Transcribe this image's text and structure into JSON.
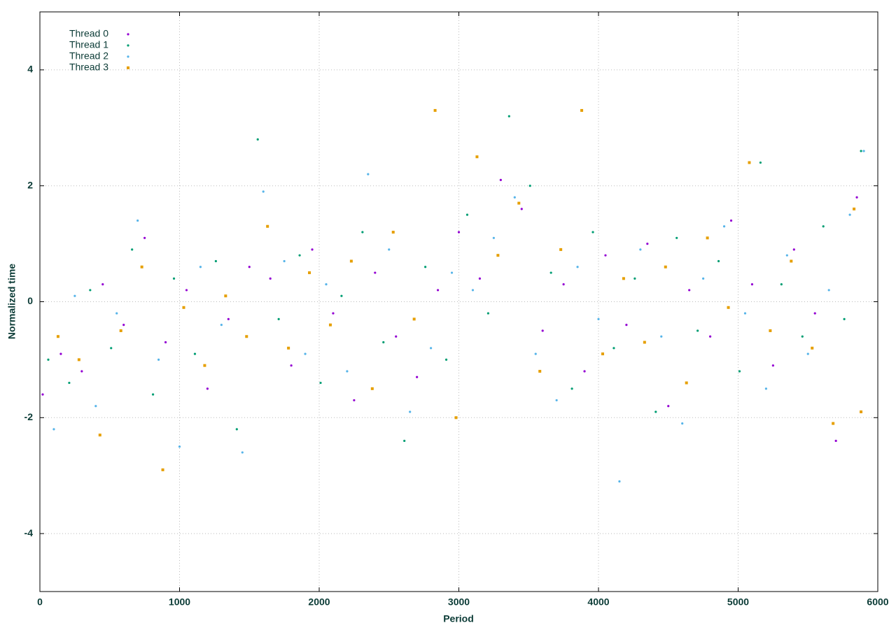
{
  "chart_data": {
    "type": "scatter",
    "xlabel": "Period",
    "ylabel": "Normalized time",
    "xlim": [
      0,
      6000
    ],
    "ylim": [
      -5,
      5
    ],
    "xticks": [
      0,
      1000,
      2000,
      3000,
      4000,
      5000,
      6000
    ],
    "yticks": [
      -4,
      -2,
      0,
      2,
      4
    ],
    "grid": true,
    "legend": "upper-left",
    "series": [
      {
        "name": "Thread 0",
        "color": "#9400d3",
        "x": [
          20,
          150,
          300,
          450,
          600,
          750,
          900,
          1050,
          1200,
          1350,
          1500,
          1650,
          1800,
          1950,
          2100,
          2250,
          2400,
          2550,
          2700,
          2850,
          3000,
          3150,
          3300,
          3450,
          3600,
          3750,
          3900,
          4050,
          4200,
          4350,
          4500,
          4650,
          4800,
          4950,
          5100,
          5250,
          5400,
          5550,
          5700,
          5850
        ],
        "values": [
          -1.6,
          -0.9,
          -1.2,
          0.3,
          -0.4,
          1.1,
          -0.7,
          0.2,
          -1.5,
          -0.3,
          0.6,
          0.4,
          -1.1,
          0.9,
          -0.2,
          -1.7,
          0.5,
          -0.6,
          -1.3,
          0.2,
          1.2,
          0.4,
          2.1,
          1.6,
          -0.5,
          0.3,
          -1.2,
          0.8,
          -0.4,
          1.0,
          -1.8,
          0.2,
          -0.6,
          1.4,
          0.3,
          -1.1,
          0.9,
          -0.2,
          -2.4,
          1.8
        ]
      },
      {
        "name": "Thread 1",
        "color": "#009e73",
        "x": [
          60,
          210,
          360,
          510,
          660,
          810,
          960,
          1110,
          1260,
          1410,
          1560,
          1710,
          1860,
          2010,
          2160,
          2310,
          2460,
          2610,
          2760,
          2910,
          3060,
          3210,
          3360,
          3510,
          3660,
          3810,
          3960,
          4110,
          4260,
          4410,
          4560,
          4710,
          4860,
          5010,
          5160,
          5310,
          5460,
          5610,
          5760,
          5880
        ],
        "values": [
          -1.0,
          -1.4,
          0.2,
          -0.8,
          0.9,
          -1.6,
          0.4,
          -0.9,
          0.7,
          -2.2,
          2.8,
          -0.3,
          0.8,
          -1.4,
          0.1,
          1.2,
          -0.7,
          -2.4,
          0.6,
          -1.0,
          1.5,
          -0.2,
          3.2,
          2.0,
          0.5,
          -1.5,
          1.2,
          -0.8,
          0.4,
          -1.9,
          1.1,
          -0.5,
          0.7,
          -1.2,
          2.4,
          0.3,
          -0.6,
          1.3,
          -0.3,
          2.6
        ]
      },
      {
        "name": "Thread 2",
        "color": "#56b4e9",
        "x": [
          100,
          250,
          400,
          550,
          700,
          850,
          1000,
          1150,
          1300,
          1450,
          1600,
          1750,
          1900,
          2050,
          2200,
          2350,
          2500,
          2650,
          2800,
          2950,
          3100,
          3250,
          3400,
          3550,
          3700,
          3850,
          4000,
          4150,
          4300,
          4450,
          4600,
          4750,
          4900,
          5050,
          5200,
          5350,
          5500,
          5650,
          5800,
          5900
        ],
        "values": [
          -2.2,
          0.1,
          -1.8,
          -0.2,
          1.4,
          -1.0,
          -2.5,
          0.6,
          -0.4,
          -2.6,
          1.9,
          0.7,
          -0.9,
          0.3,
          -1.2,
          2.2,
          0.9,
          -1.9,
          -0.8,
          0.5,
          0.2,
          1.1,
          1.8,
          -0.9,
          -1.7,
          0.6,
          -0.3,
          -3.1,
          0.9,
          -0.6,
          -2.1,
          0.4,
          1.3,
          -0.2,
          -1.5,
          0.8,
          -0.9,
          0.2,
          1.5,
          2.6
        ]
      },
      {
        "name": "Thread 3",
        "color": "#e69f00",
        "x": [
          130,
          280,
          430,
          580,
          730,
          880,
          1030,
          1180,
          1330,
          1480,
          1630,
          1780,
          1930,
          2080,
          2230,
          2380,
          2530,
          2680,
          2830,
          2980,
          3130,
          3280,
          3430,
          3580,
          3730,
          3880,
          4030,
          4180,
          4330,
          4480,
          4630,
          4780,
          4930,
          5080,
          5230,
          5380,
          5530,
          5680,
          5830,
          5880
        ],
        "values": [
          -0.6,
          -1.0,
          -2.3,
          -0.5,
          0.6,
          -2.9,
          -0.1,
          -1.1,
          0.1,
          -0.6,
          1.3,
          -0.8,
          0.5,
          -0.4,
          0.7,
          -1.5,
          1.2,
          -0.3,
          3.3,
          -2.0,
          2.5,
          0.8,
          1.7,
          -1.2,
          0.9,
          3.3,
          -0.9,
          0.4,
          -0.7,
          0.6,
          -1.4,
          1.1,
          -0.1,
          2.4,
          -0.5,
          0.7,
          -0.8,
          -2.1,
          1.6,
          -1.9
        ]
      }
    ]
  }
}
